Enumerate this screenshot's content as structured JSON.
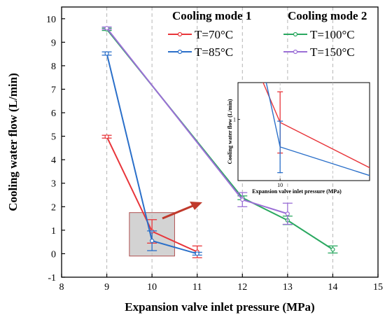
{
  "chart_data": {
    "type": "line",
    "xlabel": "Expansion valve inlet pressure (MPa)",
    "ylabel": "Cooling water flow (L/min)",
    "xlim": [
      8,
      15
    ],
    "ylim": [
      -1,
      10.5
    ],
    "xticks": [
      8,
      9,
      10,
      11,
      12,
      13,
      14,
      15
    ],
    "yticks": [
      -1,
      0,
      1,
      2,
      3,
      4,
      5,
      6,
      7,
      8,
      9,
      10
    ],
    "grid": "vertical dashed",
    "legend_groups": [
      {
        "title": "Cooling mode 1",
        "entries": [
          0,
          1
        ]
      },
      {
        "title": "Cooling mode 2",
        "entries": [
          2,
          3
        ]
      }
    ],
    "legend_placement": "top-right",
    "series": [
      {
        "name": "T=70°C",
        "color": "#e8353a",
        "points": [
          {
            "x": 9,
            "y": 4.98,
            "err": 0.06
          },
          {
            "x": 10,
            "y": 0.95,
            "err": 0.5
          },
          {
            "x": 11,
            "y": 0.08,
            "err": 0.25
          }
        ]
      },
      {
        "name": "T=85°C",
        "color": "#2a6fc9",
        "points": [
          {
            "x": 9,
            "y": 8.52,
            "err": 0.07
          },
          {
            "x": 10,
            "y": 0.55,
            "err": 0.42
          },
          {
            "x": 11,
            "y": 0.0,
            "err": 0.06
          }
        ]
      },
      {
        "name": "T=100°C",
        "color": "#2aa860",
        "points": [
          {
            "x": 9,
            "y": 9.55,
            "err": 0.05
          },
          {
            "x": 12,
            "y": 2.38,
            "err": 0.08
          },
          {
            "x": 13,
            "y": 1.42,
            "err": 0.18
          },
          {
            "x": 14,
            "y": 0.18,
            "err": 0.15
          }
        ]
      },
      {
        "name": "T=150°C",
        "color": "#9b6fd6",
        "points": [
          {
            "x": 9,
            "y": 9.6,
            "err": 0.05
          },
          {
            "x": 12,
            "y": 2.3,
            "err": 0.3
          },
          {
            "x": 13,
            "y": 1.7,
            "err": 0.45
          }
        ]
      }
    ],
    "zoom_box": {
      "x": [
        9.5,
        10.5
      ],
      "y": [
        -0.1,
        1.75
      ],
      "color": "#c0c0c0"
    },
    "arrow_color": "#c0392b",
    "inset": {
      "xlabel": "Expansion valve inlet pressure (MPa)",
      "ylabel": "Cooling water flow (L/min)",
      "xlim": [
        9.6,
        10.85
      ],
      "ylim": [
        0,
        1.6
      ],
      "xticks": [
        10
      ],
      "yticks": [
        1
      ]
    }
  }
}
